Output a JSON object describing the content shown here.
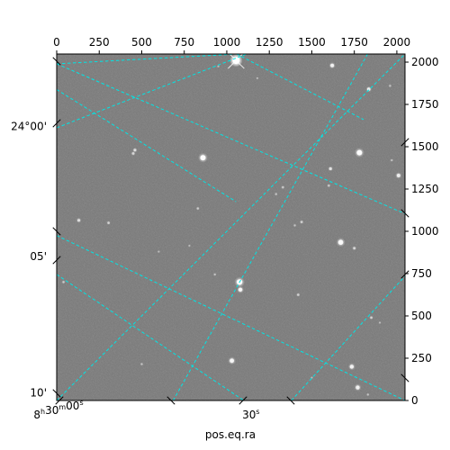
{
  "chart_data": {
    "type": "image",
    "xlabel": "pos.eq.ra",
    "pixel_axes": {
      "x": {
        "range": [
          0,
          2048
        ],
        "ticks": [
          0,
          250,
          500,
          750,
          1000,
          1250,
          1500,
          1750,
          2000
        ],
        "labels": [
          "0",
          "250",
          "500",
          "750",
          "1000",
          "1250",
          "1500",
          "1750",
          "2000"
        ],
        "position": "top"
      },
      "y": {
        "range": [
          0,
          2048
        ],
        "ticks": [
          0,
          250,
          500,
          750,
          1000,
          1250,
          1500,
          1750,
          2000
        ],
        "labels": [
          "0",
          "250",
          "500",
          "750",
          "1000",
          "1250",
          "1500",
          "1750",
          "2000"
        ],
        "position": "right"
      }
    },
    "world_axes": {
      "ra_ticks": [
        {
          "label_parts": [
            "8",
            "h",
            "30",
            "m",
            "00",
            "s"
          ],
          "pixel": [
            0,
            0
          ]
        },
        {
          "label_parts": [
            "30",
            "s"
          ],
          "pixel": [
            1100,
            0
          ]
        }
      ],
      "dec_ticks": [
        {
          "label": "24°00'",
          "pixel": [
            0,
            1620
          ]
        },
        {
          "label": "05'",
          "pixel": [
            0,
            850
          ]
        },
        {
          "label": "10'",
          "pixel": [
            0,
            45
          ]
        }
      ]
    },
    "grid": {
      "color": "#00e5e5",
      "style": "dashed",
      "lines": [
        [
          [
            0,
            1990
          ],
          [
            2048,
            1104
          ]
        ],
        [
          [
            0,
            975
          ],
          [
            2048,
            0
          ]
        ],
        [
          [
            0,
            745
          ],
          [
            1100,
            0
          ]
        ],
        [
          [
            0,
            0
          ],
          [
            2048,
            2048
          ]
        ],
        [
          [
            0,
            1612
          ],
          [
            1117,
            2048
          ]
        ],
        [
          [
            0,
            1838
          ],
          [
            1055,
            1175
          ]
        ],
        [
          [
            685,
            0
          ],
          [
            1828,
            2048
          ]
        ],
        [
          [
            1380,
            0
          ],
          [
            2048,
            735
          ]
        ],
        [
          [
            1058,
            2048
          ],
          [
            1805,
            1660
          ]
        ],
        [
          [
            0,
            1990
          ],
          [
            1063,
            2048
          ]
        ]
      ]
    },
    "image_background": "#777777",
    "sources": [
      {
        "x": 1055,
        "y": 2010,
        "brightness": 1.0,
        "size": 4
      },
      {
        "x": 860,
        "y": 1435,
        "brightness": 0.95,
        "size": 3
      },
      {
        "x": 1780,
        "y": 1465,
        "brightness": 0.95,
        "size": 3
      },
      {
        "x": 1670,
        "y": 935,
        "brightness": 0.9,
        "size": 2.8
      },
      {
        "x": 1075,
        "y": 700,
        "brightness": 0.95,
        "size": 3.2
      },
      {
        "x": 1080,
        "y": 655,
        "brightness": 0.85,
        "size": 2.2
      },
      {
        "x": 1030,
        "y": 235,
        "brightness": 0.85,
        "size": 2.4
      },
      {
        "x": 1735,
        "y": 200,
        "brightness": 0.8,
        "size": 2.2
      },
      {
        "x": 1770,
        "y": 77,
        "brightness": 0.8,
        "size": 2.2
      },
      {
        "x": 1620,
        "y": 1980,
        "brightness": 0.8,
        "size": 2
      },
      {
        "x": 1835,
        "y": 1840,
        "brightness": 0.75,
        "size": 1.8
      },
      {
        "x": 2010,
        "y": 1330,
        "brightness": 0.75,
        "size": 2
      },
      {
        "x": 1610,
        "y": 1370,
        "brightness": 0.65,
        "size": 1.6
      },
      {
        "x": 460,
        "y": 1480,
        "brightness": 0.6,
        "size": 1.5
      },
      {
        "x": 450,
        "y": 1460,
        "brightness": 0.55,
        "size": 1.4
      },
      {
        "x": 130,
        "y": 1065,
        "brightness": 0.6,
        "size": 1.6
      },
      {
        "x": 305,
        "y": 1050,
        "brightness": 0.5,
        "size": 1.3
      },
      {
        "x": 1750,
        "y": 900,
        "brightness": 0.55,
        "size": 1.4
      },
      {
        "x": 1440,
        "y": 1055,
        "brightness": 0.5,
        "size": 1.3
      },
      {
        "x": 1420,
        "y": 625,
        "brightness": 0.5,
        "size": 1.3
      },
      {
        "x": 1850,
        "y": 490,
        "brightness": 0.5,
        "size": 1.3
      },
      {
        "x": 1600,
        "y": 1270,
        "brightness": 0.45,
        "size": 1.2
      },
      {
        "x": 1330,
        "y": 1260,
        "brightness": 0.45,
        "size": 1.2
      },
      {
        "x": 830,
        "y": 1135,
        "brightness": 0.45,
        "size": 1.2
      },
      {
        "x": 40,
        "y": 700,
        "brightness": 0.45,
        "size": 1.2
      },
      {
        "x": 1290,
        "y": 1220,
        "brightness": 0.4,
        "size": 1.1
      },
      {
        "x": 500,
        "y": 215,
        "brightness": 0.4,
        "size": 1.1
      },
      {
        "x": 1970,
        "y": 1420,
        "brightness": 0.4,
        "size": 1.1
      },
      {
        "x": 1400,
        "y": 1035,
        "brightness": 0.4,
        "size": 1.1
      },
      {
        "x": 930,
        "y": 745,
        "brightness": 0.4,
        "size": 1.1
      },
      {
        "x": 1960,
        "y": 1860,
        "brightness": 0.4,
        "size": 1.1
      },
      {
        "x": 1830,
        "y": 35,
        "brightness": 0.4,
        "size": 1.1
      },
      {
        "x": 1180,
        "y": 1905,
        "brightness": 0.35,
        "size": 1
      },
      {
        "x": 950,
        "y": 1975,
        "brightness": 0.35,
        "size": 1
      },
      {
        "x": 1500,
        "y": 135,
        "brightness": 0.35,
        "size": 1
      },
      {
        "x": 780,
        "y": 915,
        "brightness": 0.35,
        "size": 1
      },
      {
        "x": 1900,
        "y": 460,
        "brightness": 0.35,
        "size": 1
      },
      {
        "x": 600,
        "y": 880,
        "brightness": 0.35,
        "size": 1
      }
    ]
  }
}
